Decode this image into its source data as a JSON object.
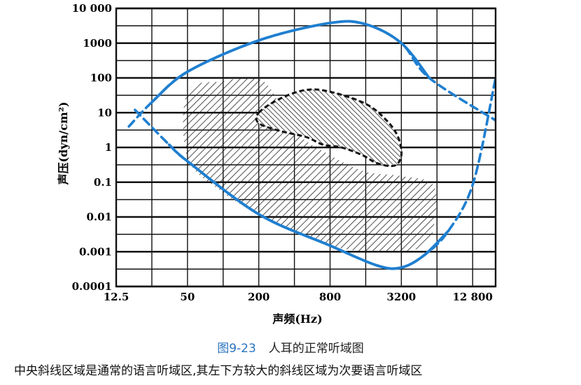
{
  "chart_data": {
    "type": "area",
    "xlabel": "声频(Hz)",
    "ylabel": "声压(dyn/cm²)",
    "x_scale": "log2",
    "y_scale": "log10",
    "xlim": [
      12.5,
      20000
    ],
    "ylim": [
      0.0001,
      10000
    ],
    "x_ticks": [
      12.5,
      50,
      200,
      800,
      3200,
      12800
    ],
    "x_tick_labels": [
      "12.5",
      "50",
      "200",
      "800",
      "3200",
      "12 800"
    ],
    "y_ticks": [
      0.0001,
      0.001,
      0.01,
      0.1,
      1,
      10,
      100,
      1000,
      10000
    ],
    "y_tick_labels": [
      "0.0001",
      "0.001",
      "0.01",
      "0.1",
      "1",
      "10",
      "100",
      "1000",
      "10 000"
    ],
    "grid": true,
    "series": [
      {
        "style": "solid-dashed blue line",
        "x": [
          16,
          25,
          50,
          200,
          800,
          1600,
          3200,
          5500,
          20000
        ],
        "y": [
          4,
          20,
          150,
          1200,
          3800,
          3500,
          1000,
          100,
          6
        ]
      },
      {
        "style": "solid-dashed blue line",
        "x": [
          18,
          35,
          50,
          200,
          800,
          2000,
          3200,
          5000,
          8000,
          13000,
          20000
        ],
        "y": [
          12,
          1.2,
          0.4,
          0.012,
          0.0015,
          0.0004,
          0.00035,
          0.0008,
          0.004,
          0.1,
          100
        ]
      },
      {
        "style": "hatched region",
        "x": [
          50,
          100,
          180,
          250,
          400,
          800,
          1600,
          3200,
          6000,
          6000,
          5000,
          3200,
          1600,
          800,
          400,
          200,
          100,
          50
        ],
        "y": [
          40,
          80,
          100,
          50,
          3,
          0.6,
          0.2,
          0.15,
          0.08,
          0.005,
          0.0015,
          0.001,
          0.001,
          0.0015,
          0.004,
          0.012,
          0.05,
          0.5
        ]
      },
      {
        "style": "dashed-outline cross-hatched region",
        "x": [
          200,
          300,
          500,
          800,
          1600,
          2400,
          3000,
          3200,
          2800,
          2000,
          1500,
          1000,
          700,
          500,
          300,
          200
        ],
        "y": [
          10,
          25,
          45,
          40,
          18,
          6,
          2,
          0.6,
          0.3,
          0.35,
          0.6,
          1,
          1.2,
          2,
          3,
          5
        ]
      }
    ]
  },
  "caption": {
    "figure_number": "图9-23",
    "title": "人耳的正常听域图",
    "note": "中央斜线区域是通常的语言听域区,其左下方较大的斜线区域为次要语言听域区"
  }
}
